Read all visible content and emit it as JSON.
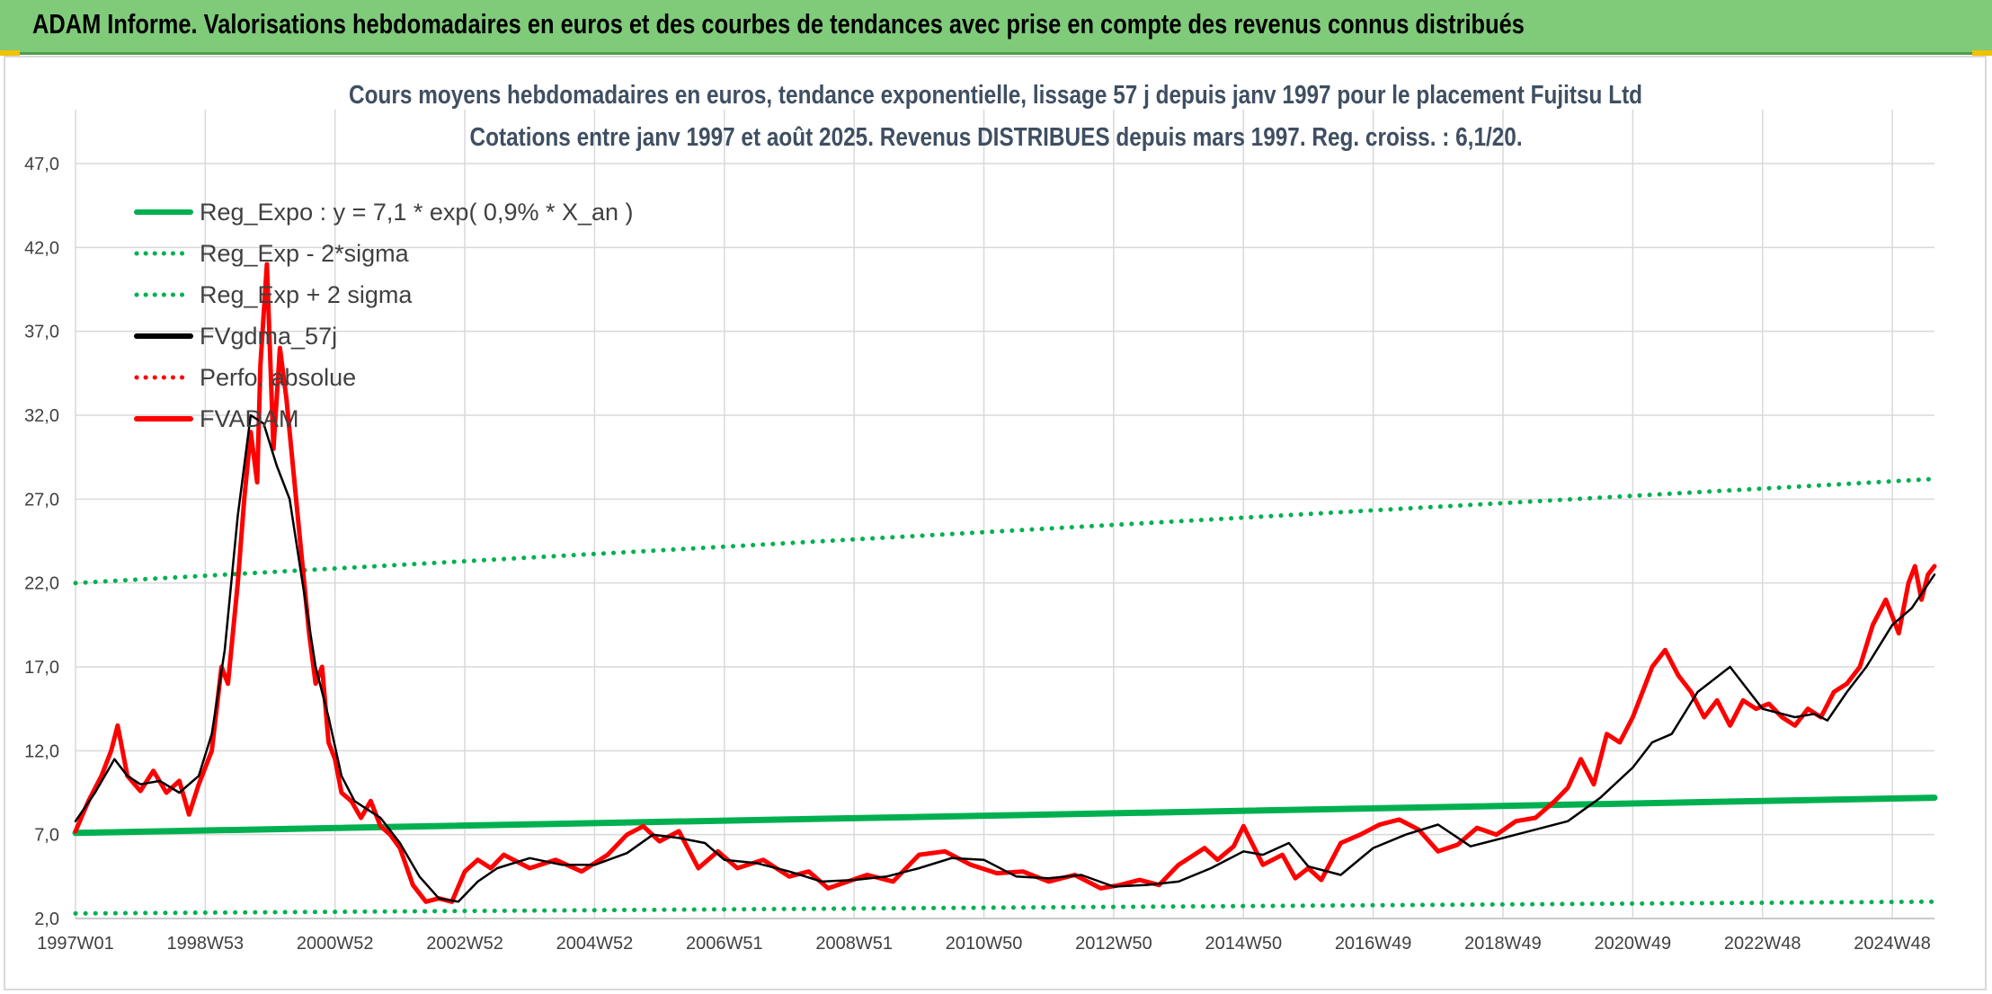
{
  "header": {
    "title": "ADAM Informe. Valorisations hebdomadaires en euros et des courbes de tendances avec prise en compte des revenus connus distribués"
  },
  "colors": {
    "header_bg": "#7fcb7a",
    "reg_green": "#00b050",
    "price_red": "#ff0000",
    "smooth_black": "#000000",
    "title_text": "#3f4f62"
  },
  "chart_data": {
    "type": "line",
    "title": "Cours moyens hebdomadaires en euros, tendance exponentielle, lissage 57 j depuis janv 1997 pour le placement Fujitsu Ltd",
    "subtitle": "Cotations entre janv 1997 et août 2025. Revenus DISTRIBUES depuis mars 1997. Reg. croiss. : 6,1/20.",
    "xlabel": "",
    "ylabel": "",
    "ylim": [
      2,
      47
    ],
    "grid": true,
    "legend_position": "top-left",
    "y_ticks": [
      "2,0",
      "7,0",
      "12,0",
      "17,0",
      "22,0",
      "27,0",
      "32,0",
      "37,0",
      "42,0",
      "47,0"
    ],
    "x_ticks": [
      "1997W01",
      "1998W53",
      "2000W52",
      "2002W52",
      "2004W52",
      "2006W51",
      "2008W51",
      "2010W50",
      "2012W50",
      "2014W50",
      "2016W49",
      "2018W49",
      "2020W49",
      "2022W48",
      "2024W48"
    ],
    "x_tick_years": [
      1997.0,
      1999.0,
      2001.0,
      2003.0,
      2005.0,
      2007.0,
      2009.0,
      2011.0,
      2013.0,
      2015.0,
      2017.0,
      2019.0,
      2021.0,
      2023.0,
      2025.0
    ],
    "x_range_years": [
      1997.0,
      2025.65
    ],
    "legend": [
      {
        "name": "Reg_Expo : y = 7,1 * exp( 0,9% *  X_an )",
        "style": "solid",
        "color": "#00b050"
      },
      {
        "name": "Reg_Exp - 2*sigma",
        "style": "dotted",
        "color": "#00b050"
      },
      {
        "name": "Reg_Exp + 2 sigma",
        "style": "dotted",
        "color": "#00b050"
      },
      {
        "name": "FVgdma_57j",
        "style": "solid",
        "color": "#000000"
      },
      {
        "name": "Perfo. absolue",
        "style": "dotted",
        "color": "#ff0000"
      },
      {
        "name": "FVADAM",
        "style": "solid",
        "color": "#ff0000"
      }
    ],
    "series": [
      {
        "name": "Reg_Expo : y = 7,1 * exp( 0,9% *  X_an )",
        "x": [
          1997.0,
          2025.65
        ],
        "y": [
          7.1,
          9.2
        ]
      },
      {
        "name": "Reg_Exp - 2*sigma",
        "x": [
          1997.0,
          2025.65
        ],
        "y": [
          2.3,
          3.0
        ]
      },
      {
        "name": "Reg_Exp + 2 sigma",
        "x": [
          1997.0,
          2025.65
        ],
        "y": [
          22.0,
          28.2
        ]
      },
      {
        "name": "FVgdma_57j",
        "x": [
          1997.0,
          1997.3,
          1997.6,
          1997.8,
          1998.0,
          1998.3,
          1998.6,
          1998.9,
          1999.1,
          1999.3,
          1999.5,
          1999.7,
          1999.9,
          2000.1,
          2000.3,
          2000.5,
          2000.7,
          2000.9,
          2001.1,
          2001.3,
          2001.5,
          2001.7,
          2002.0,
          2002.3,
          2002.6,
          2002.9,
          2003.2,
          2003.5,
          2004.0,
          2004.5,
          2005.0,
          2005.5,
          2005.9,
          2006.3,
          2006.7,
          2007.0,
          2007.5,
          2008.0,
          2008.5,
          2009.0,
          2009.5,
          2010.0,
          2010.5,
          2011.0,
          2011.5,
          2012.0,
          2012.5,
          2013.0,
          2013.5,
          2014.0,
          2014.5,
          2015.0,
          2015.3,
          2015.7,
          2016.0,
          2016.5,
          2017.0,
          2017.5,
          2018.0,
          2018.5,
          2019.0,
          2019.5,
          2020.0,
          2020.5,
          2021.0,
          2021.3,
          2021.6,
          2022.0,
          2022.5,
          2023.0,
          2023.5,
          2023.8,
          2024.0,
          2024.3,
          2024.6,
          2025.0,
          2025.3,
          2025.65
        ],
        "y": [
          7.8,
          9.5,
          11.5,
          10.5,
          10.0,
          10.2,
          9.5,
          10.5,
          13.0,
          18.0,
          26.0,
          32.0,
          31.5,
          29.0,
          27.0,
          22.0,
          17.0,
          14.0,
          10.5,
          9.0,
          8.5,
          8.0,
          6.5,
          4.5,
          3.2,
          3.0,
          4.2,
          5.0,
          5.6,
          5.2,
          5.2,
          5.9,
          7.0,
          6.8,
          6.5,
          5.5,
          5.3,
          4.8,
          4.2,
          4.3,
          4.5,
          5.0,
          5.6,
          5.5,
          4.5,
          4.4,
          4.6,
          3.9,
          4.0,
          4.2,
          5.0,
          6.0,
          5.8,
          6.5,
          5.1,
          4.6,
          6.2,
          7.0,
          7.6,
          6.3,
          6.8,
          7.3,
          7.8,
          9.2,
          11.0,
          12.5,
          13.0,
          15.5,
          17.0,
          14.5,
          14.0,
          14.2,
          13.8,
          15.5,
          17.0,
          19.5,
          20.5,
          22.5
        ]
      },
      {
        "name": "FVADAM",
        "x": [
          1997.0,
          1997.2,
          1997.4,
          1997.55,
          1997.65,
          1997.8,
          1998.0,
          1998.2,
          1998.4,
          1998.6,
          1998.75,
          1998.9,
          1999.1,
          1999.25,
          1999.35,
          1999.5,
          1999.6,
          1999.7,
          1999.8,
          1999.85,
          1999.95,
          2000.05,
          2000.15,
          2000.25,
          2000.35,
          2000.5,
          2000.6,
          2000.7,
          2000.8,
          2000.9,
          2001.0,
          2001.1,
          2001.25,
          2001.4,
          2001.55,
          2001.7,
          2001.85,
          2002.0,
          2002.2,
          2002.4,
          2002.6,
          2002.8,
          2003.0,
          2003.2,
          2003.4,
          2003.6,
          2004.0,
          2004.4,
          2004.8,
          2005.2,
          2005.5,
          2005.75,
          2006.0,
          2006.3,
          2006.6,
          2006.9,
          2007.2,
          2007.6,
          2008.0,
          2008.3,
          2008.6,
          2008.9,
          2009.2,
          2009.6,
          2010.0,
          2010.4,
          2010.8,
          2011.2,
          2011.6,
          2012.0,
          2012.4,
          2012.8,
          2013.1,
          2013.4,
          2013.7,
          2014.0,
          2014.4,
          2014.6,
          2014.85,
          2015.0,
          2015.3,
          2015.6,
          2015.8,
          2016.0,
          2016.2,
          2016.5,
          2016.8,
          2017.1,
          2017.4,
          2017.7,
          2018.0,
          2018.3,
          2018.6,
          2018.9,
          2019.2,
          2019.5,
          2019.8,
          2020.0,
          2020.2,
          2020.4,
          2020.6,
          2020.8,
          2021.0,
          2021.15,
          2021.3,
          2021.5,
          2021.7,
          2021.9,
          2022.1,
          2022.3,
          2022.5,
          2022.7,
          2022.9,
          2023.1,
          2023.3,
          2023.5,
          2023.7,
          2023.9,
          2024.1,
          2024.3,
          2024.5,
          2024.7,
          2024.9,
          2025.1,
          2025.25,
          2025.35,
          2025.45,
          2025.55,
          2025.65
        ],
        "y": [
          7.2,
          9.0,
          10.5,
          12.0,
          13.5,
          10.5,
          9.6,
          10.8,
          9.5,
          10.2,
          8.2,
          10.0,
          12.0,
          17.0,
          16.0,
          22.0,
          27.0,
          31.0,
          28.0,
          35.0,
          41.0,
          30.0,
          36.0,
          33.0,
          29.0,
          23.0,
          19.0,
          16.0,
          17.0,
          12.5,
          11.5,
          9.5,
          9.0,
          8.0,
          9.0,
          7.5,
          7.0,
          6.2,
          4.0,
          3.0,
          3.2,
          3.0,
          4.8,
          5.5,
          5.0,
          5.8,
          5.0,
          5.5,
          4.8,
          5.8,
          7.0,
          7.5,
          6.6,
          7.2,
          5.0,
          6.0,
          5.0,
          5.5,
          4.5,
          4.8,
          3.8,
          4.2,
          4.6,
          4.2,
          5.8,
          6.0,
          5.2,
          4.7,
          4.8,
          4.2,
          4.6,
          3.8,
          4.0,
          4.3,
          4.0,
          5.2,
          6.2,
          5.5,
          6.3,
          7.5,
          5.2,
          5.8,
          4.4,
          5.0,
          4.3,
          6.5,
          7.0,
          7.6,
          7.9,
          7.3,
          6.0,
          6.4,
          7.4,
          7.0,
          7.8,
          8.0,
          9.0,
          9.8,
          11.5,
          10.0,
          13.0,
          12.5,
          14.0,
          15.5,
          17.0,
          18.0,
          16.5,
          15.5,
          14.0,
          15.0,
          13.5,
          15.0,
          14.5,
          14.8,
          14.0,
          13.5,
          14.5,
          14.0,
          15.5,
          16.0,
          17.0,
          19.5,
          21.0,
          19.0,
          22.0,
          23.0,
          21.0,
          22.5,
          23.0
        ]
      }
    ]
  }
}
